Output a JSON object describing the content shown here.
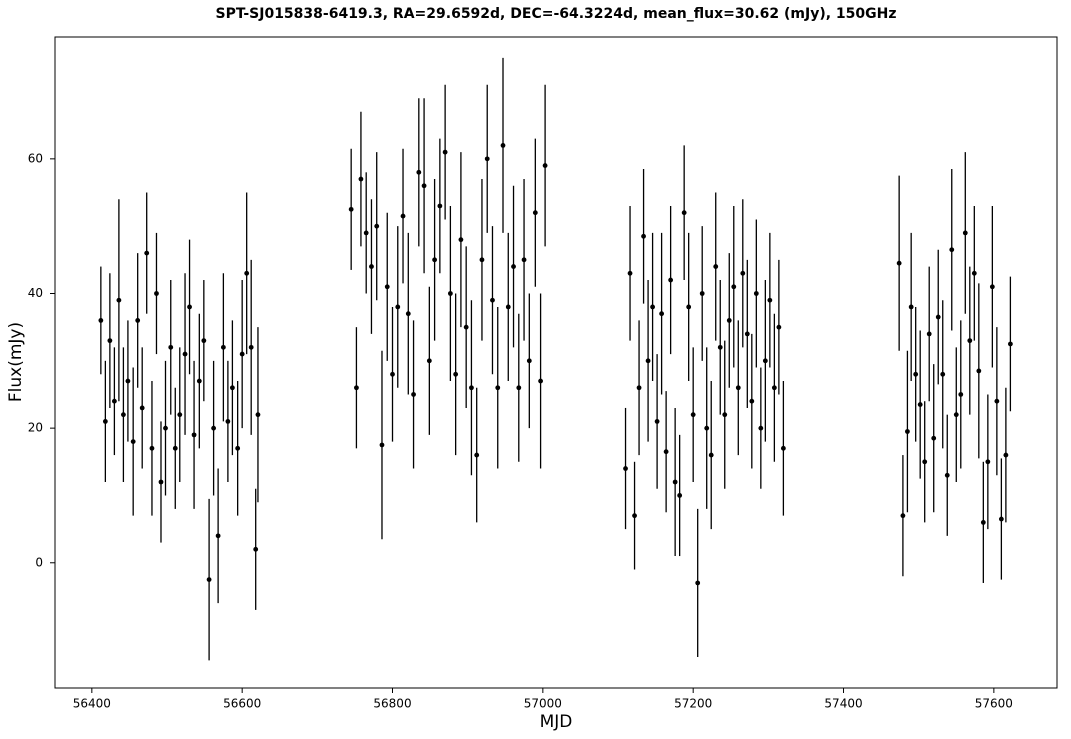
{
  "chart_data": {
    "type": "scatter",
    "title": "SPT-SJ015838-6419.3, RA=29.6592d, DEC=-64.3224d, mean_flux=30.62 (mJy), 150GHz",
    "xlabel": "MJD",
    "ylabel": "Flux(mJy)",
    "color": "#000000",
    "xlim": [
      56351,
      57684
    ],
    "ylim": [
      -18.6,
      78.1
    ],
    "xticks": [
      56400,
      56600,
      56800,
      57000,
      57200,
      57400,
      57600
    ],
    "yticks": [
      0,
      20,
      40,
      60
    ],
    "x": [
      56412,
      56418,
      56424,
      56430,
      56436,
      56442,
      56448,
      56455,
      56461,
      56467,
      56473,
      56480,
      56486,
      56492,
      56498,
      56505,
      56511,
      56517,
      56524,
      56530,
      56536,
      56543,
      56549,
      56556,
      56562,
      56568,
      56575,
      56581,
      56587,
      56594,
      56600,
      56606,
      56612,
      56618,
      56621,
      56745,
      56752,
      56758,
      56765,
      56772,
      56779,
      56786,
      56793,
      56800,
      56807,
      56814,
      56821,
      56828,
      56835,
      56842,
      56849,
      56856,
      56863,
      56870,
      56877,
      56884,
      56891,
      56898,
      56905,
      56912,
      56919,
      56926,
      56933,
      56940,
      56947,
      56954,
      56961,
      56968,
      56975,
      56982,
      56990,
      56997,
      57003,
      57110,
      57116,
      57122,
      57128,
      57134,
      57140,
      57146,
      57152,
      57158,
      57164,
      57170,
      57176,
      57182,
      57188,
      57194,
      57200,
      57206,
      57212,
      57218,
      57224,
      57230,
      57236,
      57242,
      57248,
      57254,
      57260,
      57266,
      57272,
      57278,
      57284,
      57290,
      57296,
      57302,
      57308,
      57314,
      57320,
      57474,
      57479,
      57485,
      57490,
      57496,
      57502,
      57508,
      57514,
      57520,
      57526,
      57532,
      57538,
      57544,
      57550,
      57556,
      57562,
      57568,
      57574,
      57580,
      57586,
      57592,
      57598,
      57604,
      57610,
      57616,
      57622
    ],
    "values": [
      36,
      21,
      33,
      24,
      39,
      22,
      27,
      18,
      36,
      23,
      46,
      17,
      40,
      12,
      20,
      32,
      17,
      22,
      31,
      38,
      19,
      27,
      33,
      -2.5,
      20,
      4,
      32,
      21,
      26,
      17,
      31,
      43,
      32,
      2,
      22,
      52.5,
      26,
      57,
      49,
      44,
      50,
      17.5,
      41,
      28,
      38,
      51.5,
      37,
      25,
      58,
      56,
      30,
      45,
      53,
      61,
      40,
      28,
      48,
      35,
      26,
      16,
      45,
      60,
      39,
      26,
      62,
      38,
      44,
      26,
      45,
      30,
      52,
      27,
      59,
      14,
      43,
      7,
      26,
      48.5,
      30,
      38,
      21,
      37,
      16.5,
      42,
      12,
      10,
      52,
      38,
      22,
      -3,
      40,
      20,
      16,
      44,
      32,
      22,
      36,
      41,
      26,
      43,
      34,
      24,
      40,
      20,
      30,
      39,
      26,
      35,
      17,
      44.5,
      7,
      19.5,
      38,
      28,
      23.5,
      15,
      34,
      18.5,
      36.5,
      28,
      13,
      46.5,
      22,
      25,
      49,
      33,
      43,
      28.5,
      6,
      15,
      41,
      24,
      6.5,
      16,
      32.5
    ],
    "errors": [
      8,
      9,
      10,
      8,
      15,
      10,
      9,
      11,
      10,
      9,
      9,
      10,
      9,
      9,
      10,
      10,
      9,
      10,
      12,
      10,
      11,
      10,
      9,
      12,
      10,
      10,
      11,
      9,
      10,
      10,
      11,
      12,
      13,
      9,
      13,
      9,
      9,
      10,
      9,
      10,
      11,
      14,
      11,
      10,
      12,
      10,
      12,
      11,
      11,
      13,
      11,
      12,
      10,
      10,
      13,
      12,
      13,
      12,
      13,
      10,
      12,
      11,
      11,
      12,
      13,
      11,
      12,
      11,
      12,
      10,
      11,
      13,
      12,
      9,
      10,
      8,
      10,
      10,
      12,
      11,
      10,
      12,
      9,
      11,
      11,
      9,
      10,
      11,
      10,
      11,
      10,
      12,
      11,
      11,
      10,
      11,
      10,
      12,
      10,
      11,
      11,
      10,
      11,
      9,
      12,
      10,
      11,
      10,
      10,
      13,
      9,
      12,
      11,
      10,
      11,
      9,
      10,
      11,
      10,
      11,
      9,
      12,
      10,
      11,
      12,
      11,
      10,
      13,
      9,
      10,
      12,
      11,
      9,
      10,
      10
    ]
  }
}
